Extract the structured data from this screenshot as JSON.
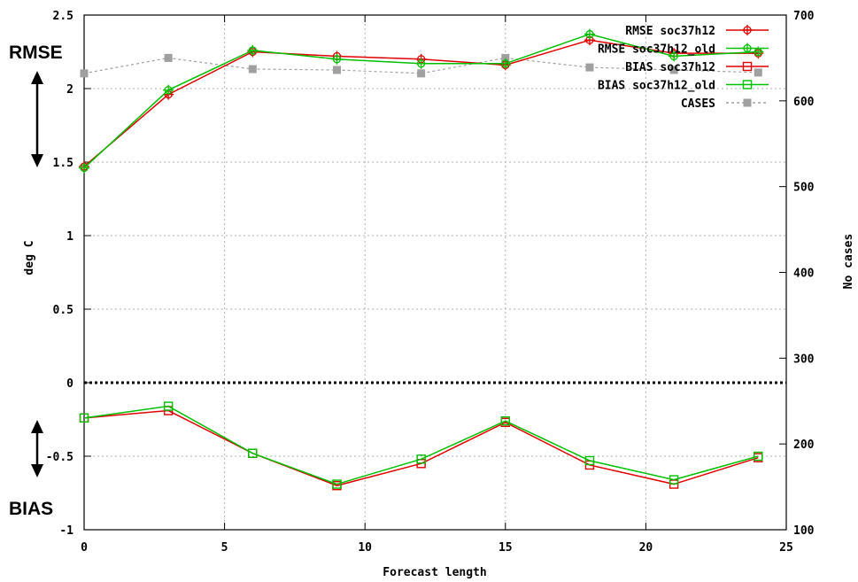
{
  "chart_data": {
    "type": "line",
    "xlabel": "Forecast length",
    "ylabel": "deg C",
    "y2label": "No cases",
    "xlim": [
      0,
      25
    ],
    "ylim": [
      -1,
      2.5
    ],
    "y2lim": [
      100,
      700
    ],
    "xticks": [
      "0",
      "5",
      "10",
      "15",
      "20",
      "25"
    ],
    "yticks": [
      "-1",
      "-0.5",
      "0",
      "0.5",
      "1",
      "1.5",
      "2",
      "2.5"
    ],
    "y2ticks": [
      "100",
      "200",
      "300",
      "400",
      "500",
      "600",
      "700"
    ],
    "grid": true,
    "legend_position": "top-right",
    "series": [
      {
        "name": "RMSE soc37h12",
        "color": "#e00000",
        "marker": "circle-plus",
        "axis": "left",
        "x": [
          0,
          3,
          6,
          9,
          12,
          15,
          18,
          21,
          24
        ],
        "y": [
          1.47,
          1.96,
          2.25,
          2.22,
          2.2,
          2.16,
          2.33,
          2.24,
          2.24
        ]
      },
      {
        "name": "RMSE soc37h12_old",
        "color": "#00c000",
        "marker": "circle-plus",
        "axis": "left",
        "x": [
          0,
          3,
          6,
          9,
          12,
          15,
          18,
          21,
          24
        ],
        "y": [
          1.46,
          1.99,
          2.26,
          2.2,
          2.17,
          2.17,
          2.37,
          2.22,
          2.25
        ]
      },
      {
        "name": "BIAS soc37h12",
        "color": "#e00000",
        "marker": "square",
        "axis": "left",
        "x": [
          0,
          3,
          6,
          9,
          12,
          15,
          18,
          21,
          24
        ],
        "y": [
          -0.24,
          -0.19,
          -0.48,
          -0.7,
          -0.55,
          -0.27,
          -0.56,
          -0.69,
          -0.51
        ]
      },
      {
        "name": "BIAS soc37h12_old",
        "color": "#00c000",
        "marker": "square",
        "axis": "left",
        "x": [
          0,
          3,
          6,
          9,
          12,
          15,
          18,
          21,
          24
        ],
        "y": [
          -0.24,
          -0.16,
          -0.48,
          -0.69,
          -0.52,
          -0.26,
          -0.53,
          -0.66,
          -0.5
        ]
      },
      {
        "name": "CASES",
        "color": "#a0a0a0",
        "marker": "filled-square",
        "axis": "right",
        "dashed": true,
        "x": [
          0,
          3,
          6,
          9,
          12,
          15,
          18,
          21,
          24
        ],
        "y": [
          632,
          650,
          637,
          636,
          632,
          650,
          639,
          636,
          633
        ]
      }
    ],
    "annotations": [
      {
        "text": "RMSE",
        "kind": "double-arrow-label"
      },
      {
        "text": "BIAS",
        "kind": "double-arrow-label"
      }
    ],
    "reference_line": {
      "y": 0,
      "style": "dotted"
    }
  }
}
